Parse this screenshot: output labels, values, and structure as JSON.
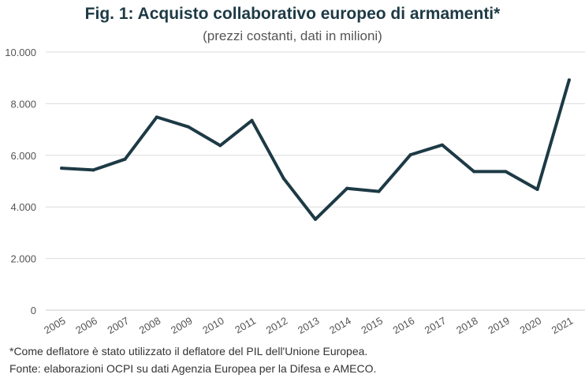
{
  "chart_data": {
    "type": "line",
    "title": "Fig. 1: Acquisto collaborativo europeo di armamenti*",
    "subtitle": "(prezzi costanti, dati in milioni)",
    "xlabel": "",
    "ylabel": "",
    "categories": [
      "2005",
      "2006",
      "2007",
      "2008",
      "2009",
      "2010",
      "2011",
      "2012",
      "2013",
      "2014",
      "2015",
      "2016",
      "2017",
      "2018",
      "2019",
      "2020",
      "2021"
    ],
    "values": [
      5500,
      5430,
      5850,
      7480,
      7100,
      6380,
      7350,
      5100,
      3520,
      4720,
      4600,
      6020,
      6400,
      5370,
      5370,
      4680,
      8920
    ],
    "ylim": [
      0,
      10000
    ],
    "yticks": [
      0,
      2000,
      4000,
      6000,
      8000,
      10000
    ],
    "ytick_labels": [
      "0",
      "2.000",
      "4.000",
      "6.000",
      "8.000",
      "10.000"
    ],
    "grid": true,
    "line_color": "#1d3a45"
  },
  "footnotes": [
    "*Come deflatore è stato utilizzato il deflatore del PIL dell'Unione Europea.",
    "Fonte: elaborazioni OCPI su dati Agenzia Europea per la Difesa e AMECO."
  ]
}
